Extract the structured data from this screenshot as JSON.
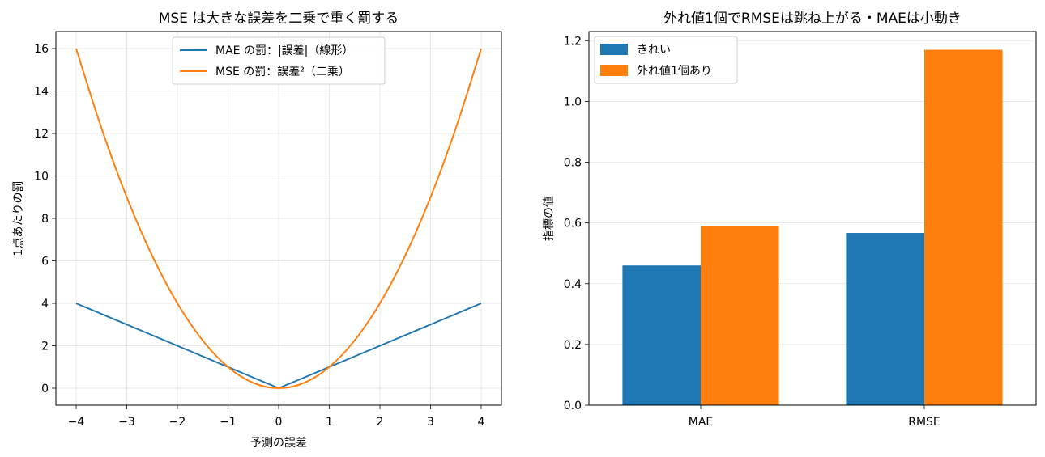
{
  "chart_data": [
    {
      "type": "line",
      "title": "MSE は大きな誤差を二乗で重く罰する",
      "xlabel": "予測の誤差",
      "ylabel": "1点あたりの罰",
      "xlim": [
        -4.4,
        4.4
      ],
      "ylim": [
        -0.8,
        16.8
      ],
      "xticks": [
        -4,
        -3,
        -2,
        -1,
        0,
        1,
        2,
        3,
        4
      ],
      "xtick_labels": [
        "−4",
        "−3",
        "−2",
        "−1",
        "0",
        "1",
        "2",
        "3",
        "4"
      ],
      "yticks": [
        0,
        2,
        4,
        6,
        8,
        10,
        12,
        14,
        16
      ],
      "ytick_labels": [
        "0",
        "2",
        "4",
        "6",
        "8",
        "10",
        "12",
        "14",
        "16"
      ],
      "grid": true,
      "legend_position": "upper-center",
      "x": [
        -4,
        -3.5,
        -3,
        -2.5,
        -2,
        -1.5,
        -1,
        -0.5,
        0,
        0.5,
        1,
        1.5,
        2,
        2.5,
        3,
        3.5,
        4
      ],
      "series": [
        {
          "name": "MAE の罰：|誤差|（線形）",
          "color": "#1f77b4",
          "values": [
            4,
            3.5,
            3,
            2.5,
            2,
            1.5,
            1,
            0.5,
            0,
            0.5,
            1,
            1.5,
            2,
            2.5,
            3,
            3.5,
            4
          ]
        },
        {
          "name": "MSE の罰：誤差²（二乗）",
          "color": "#ff7f0e",
          "values": [
            16,
            12.25,
            9,
            6.25,
            4,
            2.25,
            1,
            0.25,
            0,
            0.25,
            1,
            2.25,
            4,
            6.25,
            9,
            12.25,
            16
          ]
        }
      ]
    },
    {
      "type": "bar",
      "title": "外れ値1個でRMSEは跳ね上がる・MAEは小動き",
      "xlabel": "",
      "ylabel": "指標の値",
      "categories": [
        "MAE",
        "RMSE"
      ],
      "ylim": [
        0,
        1.23
      ],
      "yticks": [
        0,
        0.2,
        0.4,
        0.6,
        0.8,
        1.0,
        1.2
      ],
      "ytick_labels": [
        "0.0",
        "0.2",
        "0.4",
        "0.6",
        "0.8",
        "1.0",
        "1.2"
      ],
      "grid": true,
      "legend_position": "upper-left",
      "series": [
        {
          "name": "きれい",
          "color": "#1f77b4",
          "values": [
            0.46,
            0.567
          ]
        },
        {
          "name": "外れ値1個あり",
          "color": "#ff7f0e",
          "values": [
            0.59,
            1.17
          ]
        }
      ]
    }
  ]
}
